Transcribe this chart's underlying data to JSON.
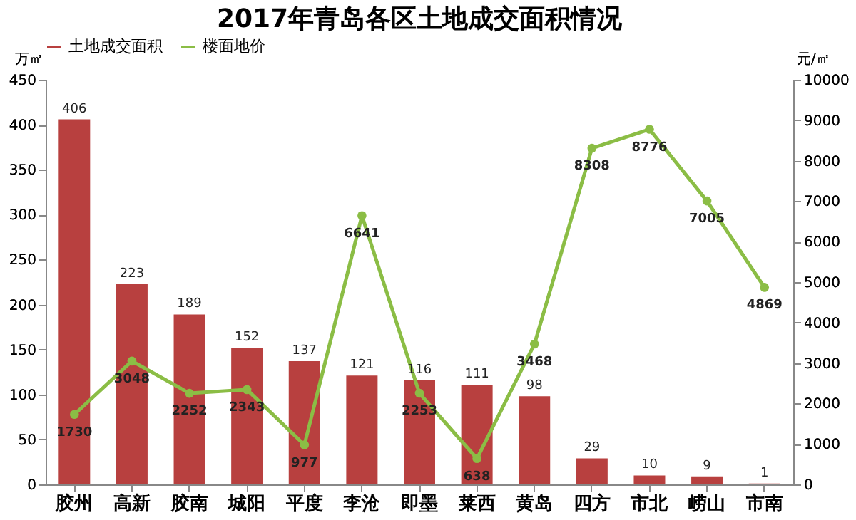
{
  "chart_data": {
    "type": "bar",
    "title": "2017年青岛各区土地成交面积情况",
    "categories": [
      "胶州",
      "高新",
      "胶南",
      "城阳",
      "平度",
      "李沧",
      "即墨",
      "莱西",
      "黄岛",
      "四方",
      "市北",
      "崂山",
      "市南"
    ],
    "series": [
      {
        "name": "土地成交面积",
        "color": "#b8403f",
        "values": [
          406,
          223,
          189,
          152,
          137,
          121,
          116,
          111,
          98,
          29,
          10,
          9,
          1
        ]
      },
      {
        "name": "楼面地价",
        "type": "line",
        "axis": "y2",
        "color": "#8bbd45",
        "marker": "circle",
        "values": [
          1730,
          3048,
          2252,
          2343,
          977,
          6641,
          2253,
          638,
          3468,
          8308,
          8776,
          7005,
          4869
        ]
      }
    ],
    "ylabel": "万㎡",
    "y2label": "元/㎡",
    "ylim": [
      0,
      450
    ],
    "yticks": [
      0,
      50,
      100,
      150,
      200,
      250,
      300,
      350,
      400,
      450
    ],
    "y2lim": [
      0,
      10000
    ],
    "y2ticks": [
      0,
      1000,
      2000,
      3000,
      4000,
      5000,
      6000,
      7000,
      8000,
      9000,
      10000
    ],
    "data_labels": true,
    "legend": "top",
    "grid": false
  }
}
